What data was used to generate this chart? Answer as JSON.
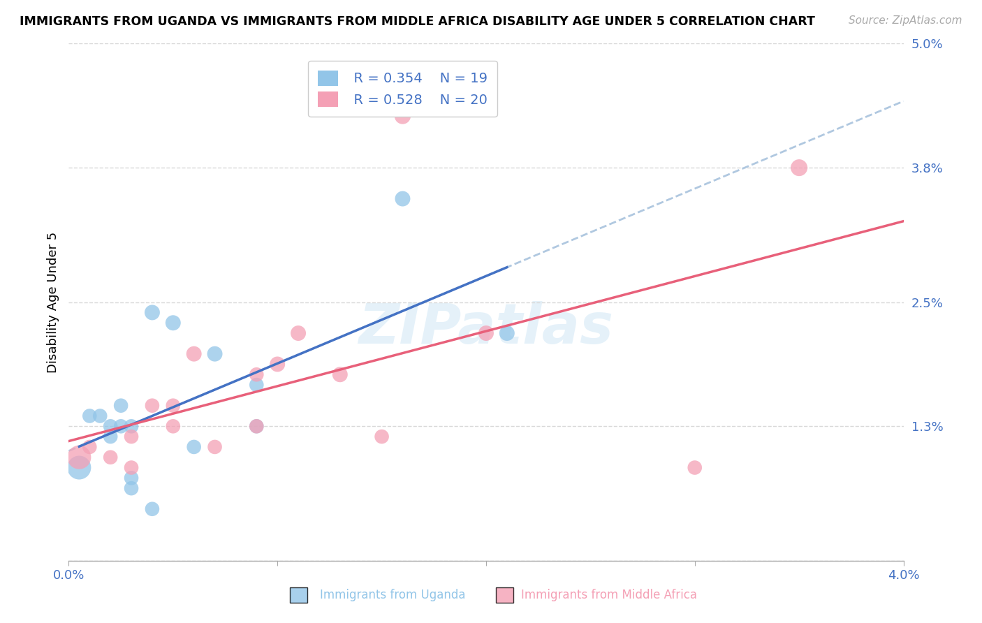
{
  "title": "IMMIGRANTS FROM UGANDA VS IMMIGRANTS FROM MIDDLE AFRICA DISABILITY AGE UNDER 5 CORRELATION CHART",
  "source": "Source: ZipAtlas.com",
  "ylabel": "Disability Age Under 5",
  "xlim": [
    0.0,
    0.04
  ],
  "ylim": [
    0.0,
    0.05
  ],
  "yticks": [
    0.0,
    0.013,
    0.025,
    0.038,
    0.05
  ],
  "ytick_labels": [
    "",
    "1.3%",
    "2.5%",
    "3.8%",
    "5.0%"
  ],
  "xticks": [
    0.0,
    0.01,
    0.02,
    0.03,
    0.04
  ],
  "xtick_labels": [
    "0.0%",
    "",
    "",
    "",
    "4.0%"
  ],
  "uganda_color": "#92c5e8",
  "middle_africa_color": "#f4a0b5",
  "uganda_line_color": "#4472c4",
  "middle_africa_line_color": "#e8607a",
  "dashed_line_color": "#b0c8e0",
  "watermark": "ZIPatlas",
  "uganda_x": [
    0.0005,
    0.001,
    0.0015,
    0.002,
    0.002,
    0.0025,
    0.0025,
    0.003,
    0.003,
    0.003,
    0.004,
    0.004,
    0.005,
    0.006,
    0.007,
    0.009,
    0.009,
    0.016,
    0.021
  ],
  "uganda_y": [
    0.009,
    0.014,
    0.014,
    0.013,
    0.012,
    0.015,
    0.013,
    0.007,
    0.013,
    0.008,
    0.024,
    0.005,
    0.023,
    0.011,
    0.02,
    0.017,
    0.013,
    0.035,
    0.022
  ],
  "uganda_sizes": [
    600,
    220,
    220,
    220,
    220,
    220,
    220,
    220,
    220,
    220,
    250,
    220,
    250,
    220,
    250,
    220,
    220,
    250,
    250
  ],
  "middle_x": [
    0.0005,
    0.001,
    0.002,
    0.003,
    0.003,
    0.004,
    0.005,
    0.005,
    0.006,
    0.007,
    0.009,
    0.009,
    0.01,
    0.011,
    0.013,
    0.015,
    0.016,
    0.02,
    0.03,
    0.035
  ],
  "middle_y": [
    0.01,
    0.011,
    0.01,
    0.009,
    0.012,
    0.015,
    0.013,
    0.015,
    0.02,
    0.011,
    0.018,
    0.013,
    0.019,
    0.022,
    0.018,
    0.012,
    0.043,
    0.022,
    0.009,
    0.038
  ],
  "middle_sizes": [
    600,
    220,
    220,
    220,
    220,
    220,
    220,
    220,
    250,
    220,
    220,
    220,
    250,
    250,
    250,
    220,
    280,
    250,
    220,
    300
  ],
  "background_color": "#ffffff",
  "grid_color": "#d8d8d8",
  "r_uganda": "R = 0.354",
  "n_uganda": "N = 19",
  "r_middle": "R = 0.528",
  "n_middle": "N = 20",
  "legend_color": "#4472c4"
}
